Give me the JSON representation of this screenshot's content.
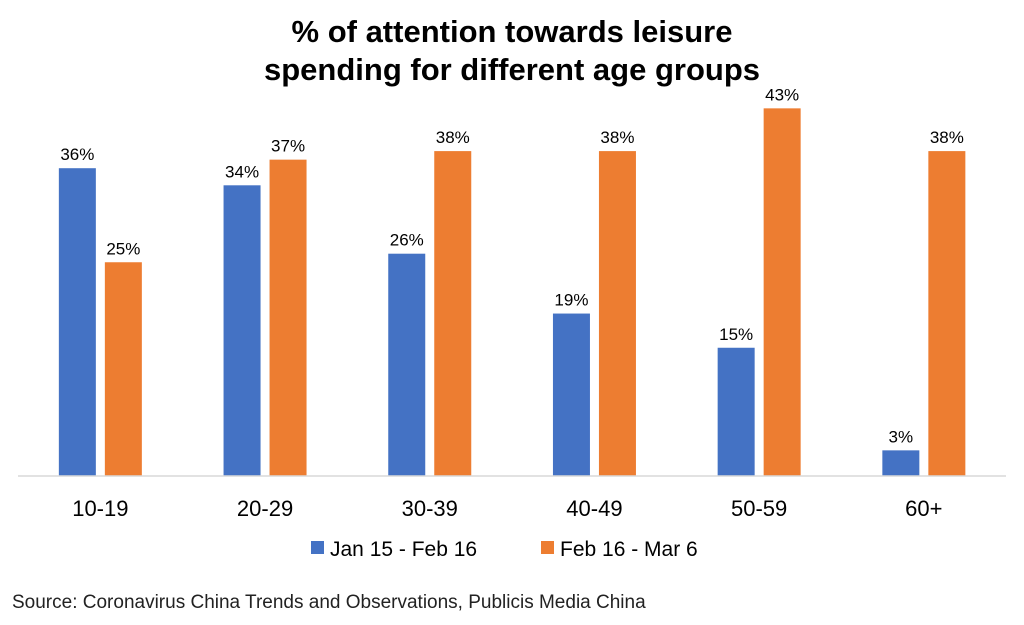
{
  "chart_data": {
    "type": "bar",
    "title": [
      "% of attention towards leisure",
      "spending for different age groups"
    ],
    "categories": [
      "10-19",
      "20-29",
      "30-39",
      "40-49",
      "50-59",
      "60+"
    ],
    "series": [
      {
        "name": "Jan 15 - Feb 16",
        "color": "#4472C4",
        "values": [
          36,
          34,
          26,
          19,
          15,
          3
        ]
      },
      {
        "name": "Feb 16 - Mar 6",
        "color": "#ED7D31",
        "values": [
          25,
          37,
          38,
          38,
          43,
          38
        ]
      }
    ],
    "value_suffix": "%",
    "ylim": [
      0,
      45
    ],
    "xlabel": "",
    "ylabel": "",
    "grid": false,
    "legend_position": "bottom"
  },
  "source": "Source: Coronavirus China Trends and Observations, Publicis Media China"
}
